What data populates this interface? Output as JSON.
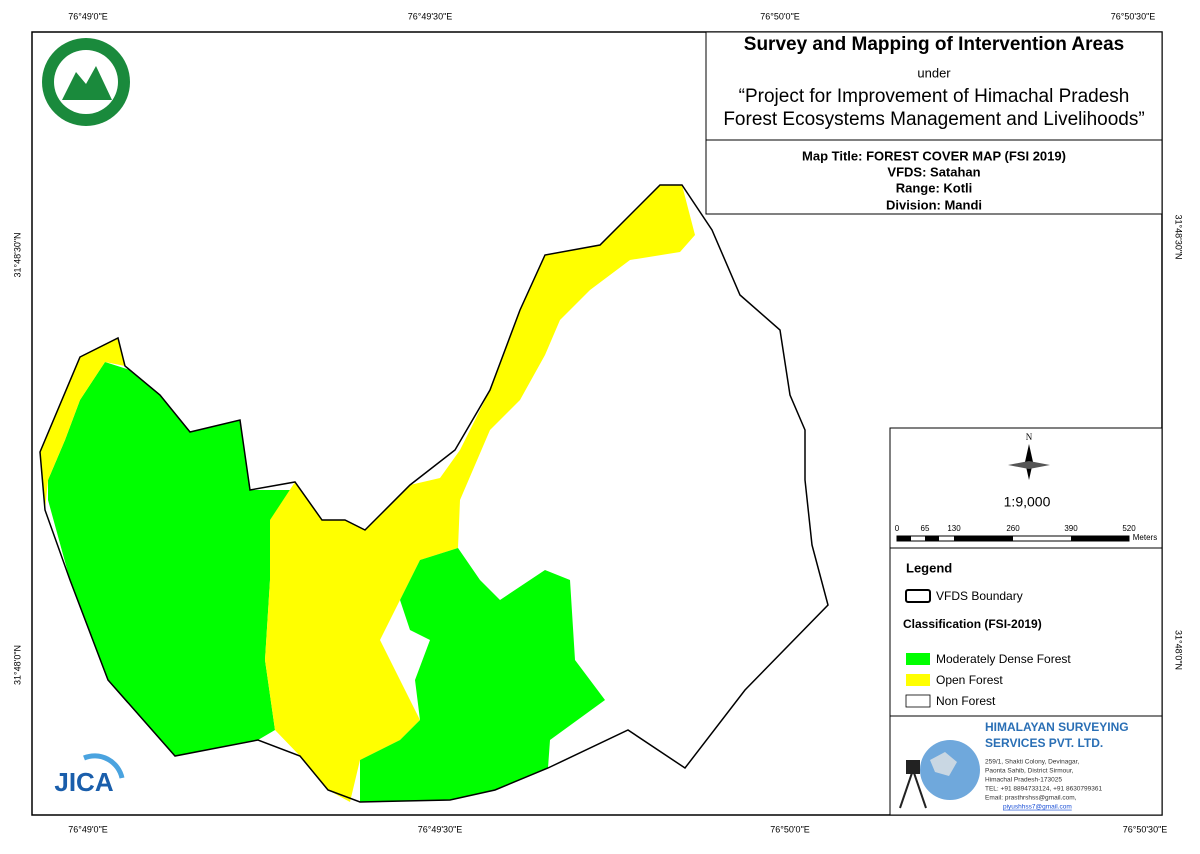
{
  "coordinates": {
    "top": [
      "76°49'0\"E",
      "76°49'30\"E",
      "76°50'0\"E",
      "76°50'30\"E"
    ],
    "bottom": [
      "76°49'0\"E",
      "76°49'30\"E",
      "76°50'0\"E",
      "76°50'30\"E"
    ],
    "left": [
      "31°48'30\"N",
      "31°48'0\"N"
    ],
    "right": [
      "31°48'30\"N",
      "31°48'0\"N"
    ]
  },
  "header": {
    "title": "Survey and Mapping of Intervention Areas",
    "under": "under",
    "project_line1": "“Project for Improvement of Himachal Pradesh",
    "project_line2": "Forest Ecosystems Management and Livelihoods”"
  },
  "map_info": {
    "map_title": "Map Title: FOREST COVER MAP (FSI 2019)",
    "vfds": "VFDS: Satahan",
    "range": "Range: Kotli",
    "division": "Division: Mandi"
  },
  "north": "N",
  "scale": "1:9,000",
  "scale_bar": {
    "ticks": [
      "0",
      "65",
      "130",
      "260",
      "390",
      "520"
    ],
    "unit": "Meters"
  },
  "legend": {
    "title": "Legend",
    "boundary": "VFDS Boundary",
    "classification": "Classification (FSI-2019)",
    "items": [
      "Moderately Dense Forest",
      "Open Forest",
      "Non Forest"
    ]
  },
  "company": {
    "name1": "HIMALAYAN SURVEYING",
    "name2": "SERVICES PVT. LTD.",
    "address": [
      "259/1, Shakti Colony, Devinagar,",
      "Paonta Sahib, District Sirmour,",
      "Himachal Pradesh-173025",
      "TEL: +91 8894733124, +91 8630799361",
      "Email: prasthrshss@gmail.com,",
      "piyushhss7@gmail.com"
    ]
  },
  "logo_text": "JICA"
}
